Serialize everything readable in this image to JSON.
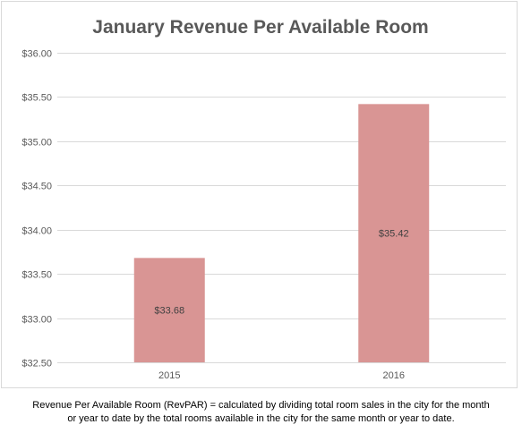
{
  "chart_data": {
    "type": "bar",
    "title": "January Revenue Per Available Room",
    "categories": [
      "2015",
      "2016"
    ],
    "values": [
      33.68,
      35.42
    ],
    "data_labels": [
      "$33.68",
      "$35.42"
    ],
    "ylim": [
      32.5,
      36.0
    ],
    "yticks": [
      32.5,
      33.0,
      33.5,
      34.0,
      34.5,
      35.0,
      35.5,
      36.0
    ],
    "ytick_labels": [
      "$32.50",
      "$33.00",
      "$33.50",
      "$34.00",
      "$34.50",
      "$35.00",
      "$35.50",
      "$36.00"
    ],
    "xlabel": "",
    "ylabel": "",
    "grid": true,
    "bar_color": "#d99594",
    "grid_color": "#d9d9d9"
  },
  "footnote": {
    "line1": "Revenue Per Available Room (RevPAR) = calculated by dividing total room sales in the city for the month",
    "line2": "or year to date by the total rooms available in the city for the same month or year to date."
  }
}
